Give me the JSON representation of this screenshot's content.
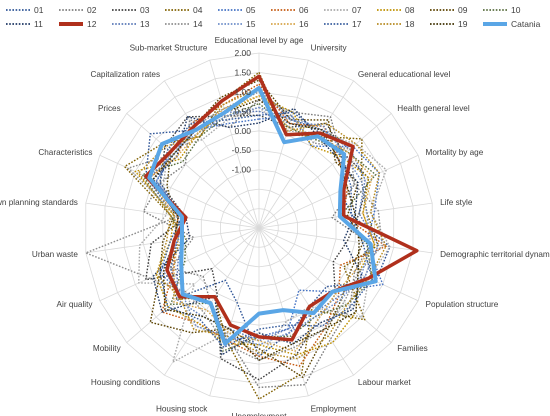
{
  "chart_data": {
    "type": "radar",
    "title": "",
    "axis_labels": [
      "Educational level by age",
      "University",
      "General educational level",
      "Health general level",
      "Mortality by age",
      "Life style",
      "Demographic territorial dynamics",
      "Population structure",
      "Families",
      "Labour market",
      "Employment",
      "Unemployment",
      "Housing stock",
      "Housing conditions",
      "Mobility",
      "Air quality",
      "Urban waste",
      "Town planning standards",
      "Characteristics",
      "Prices",
      "Capitalization rates",
      "Sub-market Structure"
    ],
    "r_ticks": [
      "2.00",
      "1.50",
      "1.00",
      "0.50",
      "0.00",
      "-0.50",
      "-1.00"
    ],
    "rlim": [
      -2.5,
      2.0
    ],
    "legend_position": "top",
    "series": [
      {
        "name": "01",
        "color": "#2f5597",
        "style": "dotted",
        "values": [
          1.1,
          0.4,
          0.5,
          0.7,
          -0.2,
          -0.1,
          0.9,
          0.8,
          -0.2,
          -0.1,
          0.3,
          0.8,
          -0.5,
          -0.9,
          0.2,
          0.0,
          -0.4,
          -0.3,
          0.7,
          1.2,
          0.5,
          0.6
        ]
      },
      {
        "name": "02",
        "color": "#7f7f7f",
        "style": "dotted",
        "values": [
          0.8,
          0.6,
          0.9,
          0.3,
          0.2,
          -0.6,
          0.4,
          0.2,
          0.6,
          0.9,
          1.7,
          1.6,
          0.4,
          -0.2,
          -0.6,
          0.0,
          -0.8,
          0.5,
          0.3,
          0.0,
          0.8,
          0.2
        ]
      },
      {
        "name": "03",
        "color": "#404040",
        "style": "dotted",
        "values": [
          0.4,
          0.2,
          0.7,
          0.4,
          0.6,
          0.1,
          -0.2,
          -0.4,
          0.1,
          0.3,
          0.9,
          1.4,
          1.0,
          -0.5,
          -0.9,
          0.7,
          0.3,
          -0.6,
          0.3,
          0.7,
          0.9,
          0.5
        ]
      },
      {
        "name": "04",
        "color": "#806000",
        "style": "dotted",
        "values": [
          1.5,
          0.0,
          0.3,
          1.0,
          0.4,
          0.3,
          0.6,
          -0.1,
          1.1,
          0.0,
          1.4,
          1.9,
          0.5,
          -0.4,
          0.3,
          0.1,
          -0.5,
          -0.2,
          1.3,
          0.8,
          0.3,
          0.9
        ]
      },
      {
        "name": "05",
        "color": "#4472c4",
        "style": "dotted",
        "values": [
          0.3,
          0.5,
          0.0,
          0.7,
          0.9,
          0.5,
          0.3,
          1.0,
          0.0,
          -0.6,
          0.2,
          0.3,
          0.5,
          -0.2,
          0.1,
          0.3,
          -0.4,
          -0.5,
          0.4,
          0.4,
          0.5,
          0.3
        ]
      },
      {
        "name": "06",
        "color": "#c55a11",
        "style": "dotted",
        "values": [
          1.2,
          0.3,
          0.6,
          0.2,
          0.0,
          -0.3,
          0.8,
          -0.2,
          0.2,
          0.6,
          1.2,
          0.8,
          0.5,
          0.4,
          0.8,
          -0.1,
          -0.3,
          -0.4,
          0.6,
          0.3,
          0.7,
          0.8
        ]
      },
      {
        "name": "07",
        "color": "#a9a9a9",
        "style": "dotted",
        "values": [
          0.6,
          0.1,
          0.4,
          0.8,
          1.1,
          0.4,
          0.9,
          0.6,
          1.0,
          -0.1,
          0.0,
          0.8,
          0.3,
          1.6,
          -0.3,
          0.9,
          0.6,
          -0.1,
          0.2,
          0.6,
          0.2,
          0.4
        ]
      },
      {
        "name": "08",
        "color": "#bf9000",
        "style": "dotted",
        "values": [
          0.9,
          0.6,
          0.0,
          0.3,
          0.6,
          0.2,
          0.5,
          0.3,
          0.8,
          1.0,
          0.9,
          0.5,
          0.6,
          0.4,
          0.6,
          0.4,
          -0.2,
          -0.3,
          1.0,
          0.2,
          0.4,
          0.6
        ]
      },
      {
        "name": "09",
        "color": "#5b4200",
        "style": "dotted",
        "values": [
          1.3,
          0.4,
          0.8,
          0.1,
          0.3,
          -0.2,
          0.2,
          0.1,
          0.3,
          0.7,
          1.5,
          0.6,
          0.2,
          0.7,
          1.2,
          0.3,
          0.0,
          -0.3,
          0.1,
          0.5,
          0.6,
          1.0
        ]
      },
      {
        "name": "10",
        "color": "#5a6f40",
        "style": "dotted",
        "values": [
          0.7,
          0.2,
          0.2,
          0.5,
          0.8,
          -0.4,
          0.3,
          0.7,
          0.5,
          0.2,
          0.4,
          0.3,
          0.8,
          -0.2,
          0.5,
          -0.4,
          -0.6,
          -0.2,
          0.8,
          0.1,
          0.3,
          0.5
        ]
      },
      {
        "name": "11",
        "color": "#1f3864",
        "style": "dotted",
        "values": [
          0.2,
          0.7,
          0.3,
          0.2,
          0.3,
          0.0,
          -0.3,
          0.4,
          0.7,
          0.4,
          0.6,
          0.2,
          0.9,
          -0.4,
          0.8,
          0.5,
          -0.7,
          -0.6,
          0.5,
          0.3,
          0.9,
          0.2
        ]
      },
      {
        "name": "12",
        "color": "#b0301c",
        "style": "solid",
        "values": [
          1.4,
          0.0,
          0.4,
          0.7,
          -0.1,
          -0.3,
          1.6,
          0.6,
          0.0,
          -0.1,
          0.5,
          0.3,
          0.1,
          -0.4,
          0.2,
          0.1,
          -0.3,
          -0.6,
          0.7,
          0.5,
          0.6,
          0.9
        ]
      },
      {
        "name": "13",
        "color": "#5b79b8",
        "style": "dotted",
        "values": [
          0.5,
          0.3,
          0.5,
          0.6,
          0.5,
          0.1,
          0.6,
          0.5,
          0.2,
          0.1,
          0.2,
          0.4,
          0.2,
          0.2,
          0.3,
          -0.2,
          -0.5,
          -0.4,
          0.6,
          0.4,
          0.5,
          0.6
        ]
      },
      {
        "name": "14",
        "color": "#8e8e8e",
        "style": "dotted",
        "values": [
          1.0,
          0.5,
          0.1,
          0.6,
          0.2,
          0.6,
          0.7,
          0.3,
          0.4,
          0.6,
          0.7,
          0.9,
          0.6,
          0.1,
          0.0,
          0.6,
          2.0,
          -0.4,
          1.2,
          0.4,
          0.6,
          0.7
        ]
      },
      {
        "name": "15",
        "color": "#6f8fc9",
        "style": "dotted",
        "values": [
          0.6,
          0.4,
          0.6,
          0.4,
          0.4,
          0.3,
          0.4,
          0.4,
          0.3,
          0.2,
          0.3,
          0.5,
          0.4,
          0.5,
          0.1,
          0.2,
          -0.4,
          -0.5,
          0.4,
          0.5,
          0.4,
          0.5
        ]
      },
      {
        "name": "16",
        "color": "#d7a54a",
        "style": "dotted",
        "values": [
          0.9,
          0.2,
          0.3,
          0.5,
          0.7,
          0.2,
          0.5,
          0.2,
          0.1,
          0.3,
          0.8,
          0.4,
          0.3,
          0.0,
          0.4,
          -0.1,
          -0.4,
          -0.3,
          0.6,
          0.3,
          0.4,
          0.7
        ]
      },
      {
        "name": "17",
        "color": "#3a5f9e",
        "style": "dotted",
        "values": [
          0.4,
          0.6,
          0.4,
          0.3,
          0.1,
          -0.1,
          0.2,
          0.7,
          0.6,
          0.5,
          0.1,
          0.1,
          0.7,
          0.3,
          0.6,
          0.3,
          -0.2,
          -0.5,
          0.3,
          0.6,
          0.7,
          0.4
        ]
      },
      {
        "name": "18",
        "color": "#b68a20",
        "style": "dotted",
        "values": [
          1.1,
          0.1,
          0.7,
          0.8,
          0.9,
          0.4,
          0.8,
          0.6,
          0.5,
          0.8,
          1.0,
          0.7,
          0.4,
          0.6,
          0.2,
          0.4,
          -0.1,
          -0.2,
          0.9,
          0.7,
          0.3,
          0.8
        ]
      },
      {
        "name": "19",
        "color": "#3f3000",
        "style": "dotted",
        "values": [
          0.8,
          0.3,
          0.5,
          0.2,
          0.0,
          0.0,
          0.1,
          0.3,
          0.8,
          0.6,
          0.6,
          0.9,
          0.2,
          0.2,
          0.7,
          0.2,
          -0.3,
          -0.4,
          0.5,
          0.4,
          0.5,
          0.6
        ]
      },
      {
        "name": "Catania",
        "color": "#5aa6e6",
        "style": "solid",
        "values": [
          1.1,
          -0.2,
          0.3,
          0.4,
          -0.2,
          -0.4,
          0.4,
          0.8,
          0.0,
          0.1,
          -0.3,
          -0.3,
          0.6,
          -0.2,
          0.1,
          -0.3,
          -0.5,
          -0.5,
          0.6,
          0.8,
          0.5,
          0.6
        ]
      }
    ]
  }
}
